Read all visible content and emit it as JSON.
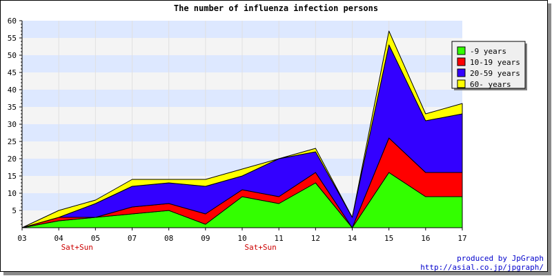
{
  "chart_data": {
    "type": "area",
    "stacked": true,
    "title": "The number of influenza infection persons",
    "categories": [
      "03",
      "04",
      "05",
      "07",
      "08",
      "09",
      "10",
      "11",
      "12",
      "14",
      "15",
      "16",
      "17"
    ],
    "category_notes": [
      "",
      "Sat+Sun",
      "",
      "",
      "",
      "",
      "Sat+Sun",
      "",
      "",
      "",
      "",
      "",
      ""
    ],
    "series": [
      {
        "name": "-9 years",
        "color": "#33ff00",
        "values": [
          0,
          2,
          3,
          4,
          5,
          1,
          9,
          7,
          13,
          0,
          16,
          9,
          9
        ]
      },
      {
        "name": "10-19 years",
        "color": "#ff0000",
        "values": [
          0,
          1,
          0,
          2,
          2,
          3,
          2,
          2,
          3,
          0,
          10,
          7,
          7
        ]
      },
      {
        "name": "20-59 years",
        "color": "#3300ff",
        "values": [
          0,
          0,
          4,
          6,
          6,
          8,
          4,
          11,
          6,
          3,
          27,
          15,
          17
        ]
      },
      {
        "name": "60- years",
        "color": "#ffff00",
        "values": [
          0,
          2,
          1,
          2,
          1,
          2,
          2,
          0,
          1,
          0,
          4,
          2,
          3
        ]
      }
    ],
    "ylim": [
      0,
      60
    ],
    "yticks": [
      "5",
      "10",
      "15",
      "20",
      "25",
      "30",
      "35",
      "40",
      "45",
      "50",
      "55",
      "60"
    ],
    "grid": true,
    "legend_position": "top-right",
    "band_colors": [
      "#dde8ff",
      "#f4f4f4"
    ]
  },
  "credit": {
    "line1": "produced by JpGraph",
    "line2": "http://asial.co.jp/jpgraph/"
  }
}
